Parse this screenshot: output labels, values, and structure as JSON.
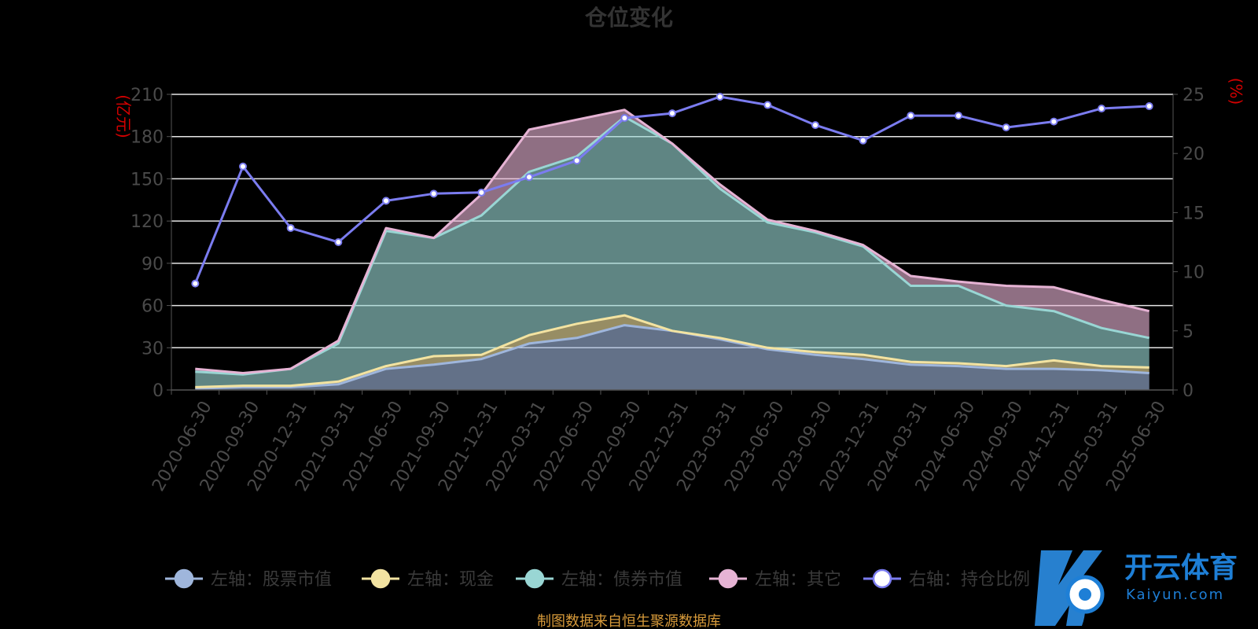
{
  "chart_data": {
    "type": "area",
    "title": "仓位变化",
    "left_unit": "(亿元)",
    "right_unit": "(%)",
    "categories": [
      "2020-06-30",
      "2020-09-30",
      "2020-12-31",
      "2021-03-31",
      "2021-06-30",
      "2021-09-30",
      "2021-12-31",
      "2022-03-31",
      "2022-06-30",
      "2022-09-30",
      "2022-12-31",
      "2023-03-31",
      "2023-06-30",
      "2023-09-30",
      "2023-12-31",
      "2024-03-31",
      "2024-06-30",
      "2024-09-30",
      "2024-12-31",
      "2025-03-31",
      "2025-06-30"
    ],
    "left_axis": {
      "min": 0,
      "max": 210,
      "ticks": [
        0,
        30,
        60,
        90,
        120,
        150,
        180,
        210
      ]
    },
    "right_axis": {
      "min": 0,
      "max": 25,
      "ticks": [
        0,
        5,
        10,
        15,
        20,
        25
      ]
    },
    "stack_series": [
      {
        "name": "左轴：股票市值",
        "color": "#9fb6dc",
        "values": [
          1,
          2,
          2,
          4,
          15,
          18,
          22,
          33,
          37,
          46,
          42,
          36,
          29,
          25,
          22,
          18,
          17,
          15,
          15,
          14,
          12
        ]
      },
      {
        "name": "左轴：现金",
        "color": "#f3e3a1",
        "values": [
          1,
          1,
          1,
          2,
          2,
          6,
          3,
          6,
          10,
          7,
          0,
          1,
          1,
          2,
          3,
          2,
          2,
          2,
          6,
          3,
          4
        ]
      },
      {
        "name": "左轴：债券市值",
        "color": "#99d6d4",
        "values": [
          11,
          8,
          12,
          27,
          96,
          84,
          99,
          116,
          119,
          141,
          133,
          106,
          89,
          85,
          77,
          54,
          55,
          43,
          35,
          27,
          21
        ]
      },
      {
        "name": "左轴：其它",
        "color": "#e6b3d4",
        "values": [
          2,
          1,
          0,
          2,
          2,
          0,
          15,
          30,
          26,
          5,
          0,
          3,
          2,
          1,
          1,
          7,
          3,
          14,
          17,
          20,
          19
        ]
      }
    ],
    "right_series": {
      "name": "右轴：持仓比例",
      "color": "#7b7cf0",
      "values": [
        9.0,
        18.9,
        13.7,
        12.5,
        16.0,
        16.6,
        16.7,
        18.0,
        19.4,
        23.0,
        23.4,
        24.8,
        24.1,
        22.4,
        21.1,
        23.2,
        23.2,
        22.2,
        22.7,
        23.8,
        24.0
      ]
    },
    "grid": true,
    "legend_position": "bottom"
  },
  "source_note": "制图数据来自恒生聚源数据库",
  "watermark": {
    "big": "开云体育",
    "small": "Kaiyun.com"
  }
}
